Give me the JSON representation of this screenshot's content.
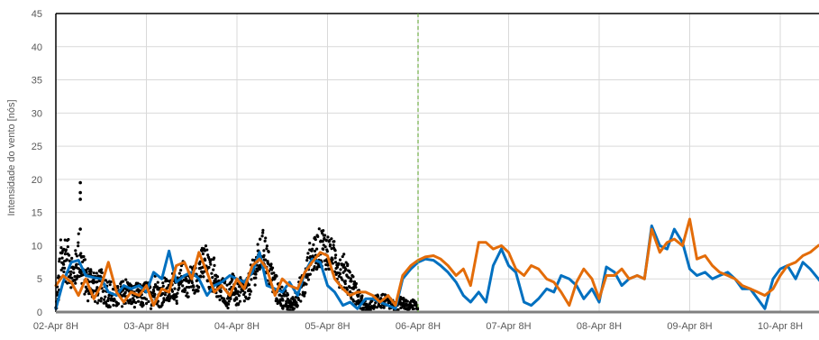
{
  "chart_data": {
    "type": "line",
    "title": "",
    "xlabel": "",
    "ylabel": "Intensidade do vento [nós]",
    "ylim": [
      0,
      45
    ],
    "yticks": [
      0,
      5,
      10,
      15,
      20,
      25,
      30,
      35,
      40,
      45
    ],
    "grid": true,
    "legend": "none",
    "xlim_days": [
      0,
      8.45
    ],
    "x_tick_labels": [
      "02-Apr 8H",
      "03-Apr 8H",
      "04-Apr 8H",
      "05-Apr 8H",
      "06-Apr 8H",
      "07-Apr 8H",
      "08-Apr 8H",
      "09-Apr 8H",
      "10-Apr 8H"
    ],
    "forecast_start_label": "06-Apr 8H",
    "colors": {
      "observed": "#000000",
      "blue_series": "#0070C0",
      "orange_series": "#E36C09",
      "forecast_line": "#70AD47",
      "grid": "#D9D9D9"
    },
    "series": [
      {
        "color": "#0070C0",
        "days": [
          0.0,
          0.08,
          0.17,
          0.25,
          0.33,
          0.42,
          0.5,
          0.58,
          0.67,
          0.75,
          0.83,
          0.92,
          1.0,
          1.08,
          1.17,
          1.25,
          1.33,
          1.42,
          1.5,
          1.58,
          1.67,
          1.75,
          1.83,
          1.92,
          2.0,
          2.08,
          2.17,
          2.25,
          2.33,
          2.42,
          2.5,
          2.58,
          2.67,
          2.75,
          2.83,
          2.92,
          3.0,
          3.08,
          3.17,
          3.25,
          3.33,
          3.42,
          3.5,
          3.58,
          3.67,
          3.75,
          3.83,
          3.92,
          4.0,
          4.08,
          4.17,
          4.25,
          4.33,
          4.42,
          4.5,
          4.58,
          4.67,
          4.75,
          4.83,
          4.92,
          5.0,
          5.08,
          5.17,
          5.25,
          5.33,
          5.42,
          5.5,
          5.58,
          5.67,
          5.75,
          5.83,
          5.92,
          6.0,
          6.08,
          6.17,
          6.25,
          6.33,
          6.42,
          6.5,
          6.58,
          6.67,
          6.75,
          6.83,
          6.92,
          7.0,
          7.08,
          7.17,
          7.25,
          7.33,
          7.42,
          7.5,
          7.58,
          7.67,
          7.75,
          7.83,
          7.92,
          8.0,
          8.08,
          8.17,
          8.25,
          8.33,
          8.42,
          8.45
        ],
        "values": [
          0.5,
          4.5,
          7.5,
          7.8,
          5.5,
          5.2,
          5.0,
          3.0,
          2.5,
          4.0,
          3.5,
          4.0,
          3.0,
          6.0,
          5.0,
          9.2,
          4.5,
          5.5,
          6.0,
          5.0,
          2.5,
          4.0,
          4.5,
          5.5,
          5.0,
          4.5,
          6.0,
          9.0,
          4.0,
          3.5,
          3.0,
          4.5,
          2.5,
          6.0,
          8.0,
          7.5,
          4.0,
          3.0,
          1.0,
          1.5,
          0.5,
          2.0,
          2.0,
          1.5,
          1.0,
          0.5,
          5.0,
          6.5,
          7.5,
          8.0,
          7.8,
          7.0,
          6.0,
          4.5,
          2.5,
          1.5,
          3.0,
          1.5,
          7.0,
          9.5,
          7.0,
          6.0,
          1.5,
          1.0,
          2.0,
          3.5,
          3.0,
          5.5,
          5.0,
          4.0,
          2.0,
          3.5,
          1.5,
          6.8,
          6.0,
          4.0,
          5.0,
          5.5,
          5.0,
          13.0,
          10.0,
          9.5,
          12.5,
          10.5,
          6.5,
          5.5,
          6.0,
          5.0,
          5.5,
          6.0,
          5.0,
          3.5,
          3.5,
          2.0,
          0.5,
          5.0,
          6.5,
          7.0,
          5.0,
          7.5,
          6.5,
          5.0,
          4.5
        ]
      },
      {
        "color": "#E36C09",
        "days": [
          0.0,
          0.08,
          0.17,
          0.25,
          0.33,
          0.42,
          0.5,
          0.58,
          0.67,
          0.75,
          0.83,
          0.92,
          1.0,
          1.08,
          1.17,
          1.25,
          1.33,
          1.42,
          1.5,
          1.58,
          1.67,
          1.75,
          1.83,
          1.92,
          2.0,
          2.08,
          2.17,
          2.25,
          2.33,
          2.42,
          2.5,
          2.58,
          2.67,
          2.75,
          2.83,
          2.92,
          3.0,
          3.08,
          3.17,
          3.25,
          3.33,
          3.42,
          3.5,
          3.58,
          3.67,
          3.75,
          3.83,
          3.92,
          4.0,
          4.08,
          4.17,
          4.25,
          4.33,
          4.42,
          4.5,
          4.58,
          4.67,
          4.75,
          4.83,
          4.92,
          5.0,
          5.08,
          5.17,
          5.25,
          5.33,
          5.42,
          5.5,
          5.58,
          5.67,
          5.75,
          5.83,
          5.92,
          6.0,
          6.08,
          6.17,
          6.25,
          6.33,
          6.42,
          6.5,
          6.58,
          6.67,
          6.75,
          6.83,
          6.92,
          7.0,
          7.08,
          7.17,
          7.25,
          7.33,
          7.42,
          7.5,
          7.58,
          7.67,
          7.75,
          7.83,
          7.92,
          8.0,
          8.08,
          8.17,
          8.25,
          8.33,
          8.42,
          8.45
        ],
        "values": [
          4.0,
          5.5,
          4.5,
          2.5,
          5.0,
          2.0,
          4.0,
          7.5,
          3.0,
          1.5,
          3.0,
          2.5,
          4.0,
          1.0,
          3.5,
          3.0,
          7.0,
          7.5,
          5.0,
          9.0,
          6.0,
          3.0,
          4.0,
          2.5,
          5.0,
          3.5,
          7.0,
          8.0,
          6.5,
          2.5,
          5.0,
          4.0,
          3.5,
          6.0,
          7.5,
          9.0,
          8.5,
          5.0,
          3.5,
          2.5,
          3.0,
          3.0,
          2.5,
          1.5,
          2.5,
          1.0,
          5.5,
          7.0,
          7.8,
          8.3,
          8.5,
          8.0,
          7.0,
          5.5,
          6.5,
          4.0,
          10.5,
          10.5,
          9.5,
          10.0,
          9.0,
          6.5,
          5.5,
          7.0,
          6.5,
          5.0,
          4.5,
          3.0,
          1.0,
          4.5,
          6.5,
          5.0,
          2.0,
          5.5,
          5.5,
          6.5,
          5.0,
          5.5,
          5.0,
          12.5,
          9.0,
          10.5,
          11.0,
          10.0,
          14.0,
          8.0,
          8.5,
          7.0,
          6.0,
          5.5,
          5.0,
          4.0,
          3.5,
          3.0,
          2.5,
          3.5,
          5.5,
          7.0,
          7.5,
          8.5,
          9.0,
          10.0,
          10.2
        ]
      }
    ],
    "observed": {
      "color": "#000000",
      "note_points": [
        {
          "day": 0.27,
          "value": 19.5
        },
        {
          "day": 0.27,
          "value": 18.0
        },
        {
          "day": 0.27,
          "value": 17.0
        },
        {
          "day": 0.27,
          "value": 12.5
        }
      ],
      "envelope_days": [
        0.0,
        0.05,
        0.1,
        0.15,
        0.2,
        0.25,
        0.3,
        0.35,
        0.4,
        0.45,
        0.5,
        0.55,
        0.6,
        0.65,
        0.7,
        0.75,
        0.8,
        0.85,
        0.9,
        0.95,
        1.0,
        1.05,
        1.1,
        1.15,
        1.2,
        1.25,
        1.3,
        1.35,
        1.4,
        1.45,
        1.5,
        1.55,
        1.6,
        1.65,
        1.7,
        1.75,
        1.8,
        1.85,
        1.9,
        1.95,
        2.0,
        2.05,
        2.1,
        2.15,
        2.2,
        2.25,
        2.3,
        2.35,
        2.4,
        2.45,
        2.5,
        2.55,
        2.6,
        2.65,
        2.7,
        2.75,
        2.8,
        2.85,
        2.9,
        2.95,
        3.0,
        3.05,
        3.1,
        3.15,
        3.2,
        3.25,
        3.3,
        3.35,
        3.4,
        3.45,
        3.5,
        3.55,
        3.6,
        3.65,
        3.7,
        3.75,
        3.8,
        3.85,
        3.9,
        3.95,
        4.0
      ],
      "envelope_high": [
        1.0,
        11.0,
        12.5,
        10.5,
        8.0,
        12.5,
        9.0,
        7.0,
        7.5,
        6.0,
        6.5,
        5.5,
        5.0,
        4.0,
        4.0,
        5.5,
        5.0,
        4.0,
        4.5,
        4.0,
        5.0,
        4.0,
        6.0,
        4.0,
        5.5,
        4.5,
        6.5,
        5.0,
        8.0,
        6.0,
        7.5,
        7.0,
        9.5,
        10.5,
        8.0,
        8.5,
        5.0,
        5.5,
        4.0,
        6.0,
        4.0,
        5.5,
        4.5,
        7.0,
        9.0,
        11.0,
        13.0,
        9.5,
        7.0,
        5.0,
        4.0,
        3.0,
        2.0,
        3.5,
        5.5,
        6.5,
        10.5,
        11.0,
        12.5,
        13.0,
        12.0,
        11.0,
        10.5,
        8.5,
        9.0,
        6.5,
        5.0,
        3.5,
        2.0,
        1.0,
        2.0,
        3.0,
        3.0,
        2.5,
        2.0,
        1.5,
        2.5,
        2.0,
        1.5,
        2.0,
        1.0
      ],
      "envelope_low": [
        0.0,
        2.0,
        4.5,
        4.0,
        3.0,
        5.0,
        3.0,
        1.5,
        2.0,
        1.0,
        1.5,
        1.0,
        0.5,
        0.5,
        0.5,
        1.0,
        1.0,
        0.5,
        1.0,
        0.5,
        1.0,
        0.5,
        1.5,
        0.5,
        1.5,
        1.0,
        2.0,
        1.0,
        3.0,
        2.0,
        3.0,
        2.5,
        4.0,
        4.5,
        3.0,
        3.0,
        1.0,
        1.5,
        0.5,
        2.0,
        0.5,
        1.5,
        1.0,
        2.5,
        4.0,
        5.5,
        6.5,
        3.5,
        2.0,
        1.0,
        0.5,
        0.0,
        0.0,
        0.5,
        1.5,
        2.0,
        5.5,
        6.0,
        6.5,
        7.0,
        6.0,
        5.5,
        5.0,
        3.0,
        3.5,
        2.0,
        1.0,
        0.5,
        0.0,
        0.0,
        0.5,
        0.5,
        0.5,
        0.5,
        0.5,
        0.0,
        0.5,
        0.5,
        0.0,
        0.5,
        0.0
      ]
    }
  }
}
